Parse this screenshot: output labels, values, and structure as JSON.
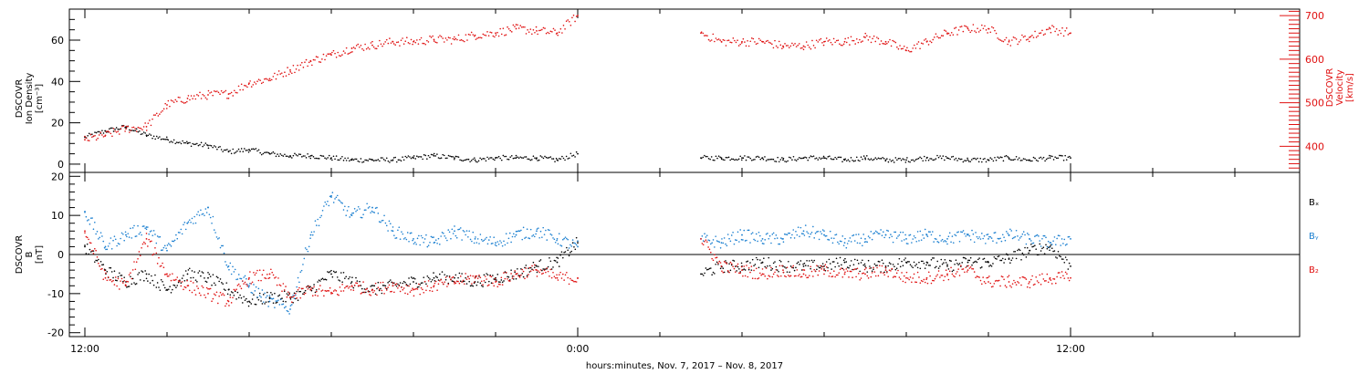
{
  "chart_data": [
    {
      "type": "scatter",
      "panel": "top",
      "ylabel_lines": [
        "DSCOVR",
        "Ion Density",
        "[cm⁻³]"
      ],
      "ylabel_right_lines": [
        "DSCOVR",
        "Velocity",
        "[km/s]"
      ],
      "ylim": [
        -4,
        75
      ],
      "ylim_right": [
        340,
        715
      ],
      "yticks": [
        0,
        20,
        40,
        60
      ],
      "yticks_right": [
        400,
        500,
        600,
        700
      ],
      "xticks": [
        "12:00",
        "0:00",
        "12:00"
      ],
      "series": [
        {
          "color": "#000000",
          "axis": "left",
          "x": [
            0,
            0.5,
            1,
            1.5,
            2,
            2.5,
            3,
            3.5,
            4,
            4.5,
            5,
            5.5,
            6,
            6.5,
            7,
            7.5,
            8,
            8.5,
            9,
            9.5,
            10,
            10.5,
            11,
            11.5,
            12,
            15,
            15.5,
            16,
            16.5,
            17,
            17.5,
            18,
            18.5,
            19,
            19.5,
            20,
            20.5,
            21,
            21.5,
            22,
            22.5,
            23,
            23.5,
            24
          ],
          "y": [
            13,
            16,
            18,
            14,
            12,
            10,
            9,
            6,
            7,
            5,
            4,
            4,
            3,
            2,
            2,
            2,
            3,
            4,
            3,
            2,
            3,
            3,
            3,
            2,
            5,
            3,
            3,
            3,
            3,
            2,
            3,
            3,
            2,
            3,
            2,
            2,
            3,
            3,
            2,
            2,
            3,
            2,
            3,
            3
          ]
        },
        {
          "color": "#e01010",
          "axis": "right",
          "x": [
            0,
            0.5,
            1,
            1.5,
            2,
            2.5,
            3,
            3.5,
            4,
            4.5,
            5,
            5.5,
            6,
            6.5,
            7,
            7.5,
            8,
            8.5,
            9,
            9.5,
            10,
            10.5,
            11,
            11.5,
            12,
            15,
            15.5,
            16,
            16.5,
            17,
            17.5,
            18,
            18.5,
            19,
            19.5,
            20,
            20.5,
            21,
            21.5,
            22,
            22.5,
            23,
            23.5,
            24
          ],
          "y": [
            415,
            425,
            440,
            445,
            495,
            510,
            518,
            520,
            545,
            555,
            575,
            595,
            610,
            625,
            632,
            640,
            640,
            645,
            645,
            655,
            660,
            670,
            665,
            660,
            700,
            660,
            640,
            640,
            640,
            630,
            630,
            640,
            640,
            650,
            640,
            620,
            640,
            660,
            670,
            670,
            640,
            650,
            670,
            660
          ]
        }
      ]
    },
    {
      "type": "scatter",
      "panel": "bottom",
      "ylabel_lines": [
        "DSCOVR",
        "B",
        "[nT]"
      ],
      "ylim": [
        -21,
        21
      ],
      "yticks": [
        -20,
        -10,
        0,
        10,
        20
      ],
      "xticks": [
        "12:00",
        "0:00",
        "12:00"
      ],
      "legend": [
        {
          "label": "Bₓ",
          "color": "#000000"
        },
        {
          "label": "Bᵧ",
          "color": "#1a7fd0"
        },
        {
          "label": "B₂",
          "color": "#e01010"
        }
      ],
      "series": [
        {
          "color": "#000000",
          "x": [
            0,
            0.5,
            1,
            1.5,
            2,
            2.5,
            3,
            3.5,
            4,
            4.5,
            5,
            5.5,
            6,
            6.5,
            7,
            7.5,
            8,
            8.5,
            9,
            9.5,
            10,
            10.5,
            11,
            11.5,
            12,
            15,
            15.5,
            16,
            16.5,
            17,
            17.5,
            18,
            18.5,
            19,
            19.5,
            20,
            20.5,
            21,
            21.5,
            22,
            22.5,
            23,
            23.5,
            24
          ],
          "y": [
            2,
            -4,
            -7,
            -5,
            -9,
            -5,
            -6,
            -9,
            -12,
            -11,
            -11,
            -9,
            -5,
            -7,
            -9,
            -8,
            -7,
            -6,
            -6,
            -7,
            -6,
            -5,
            -3,
            -2,
            3,
            -5,
            -3,
            -3,
            -2,
            -3,
            -3,
            -3,
            -2,
            -3,
            -3,
            -2,
            -2,
            -3,
            -2,
            -2,
            -1,
            1,
            2,
            -3
          ]
        },
        {
          "color": "#1a7fd0",
          "x": [
            0,
            0.5,
            1,
            1.5,
            2,
            2.5,
            3,
            3.5,
            4,
            4.5,
            5,
            5.5,
            6,
            6.5,
            7,
            7.5,
            8,
            8.5,
            9,
            9.5,
            10,
            10.5,
            11,
            11.5,
            12,
            15,
            15.5,
            16,
            16.5,
            17,
            17.5,
            18,
            18.5,
            19,
            19.5,
            20,
            20.5,
            21,
            21.5,
            22,
            22.5,
            23,
            23.5,
            24
          ],
          "y": [
            11,
            2,
            5,
            7,
            1,
            8,
            12,
            -3,
            -8,
            -12,
            -14,
            5,
            15,
            10,
            12,
            6,
            4,
            3,
            6,
            4,
            3,
            5,
            6,
            4,
            2,
            4,
            3,
            5,
            4,
            4,
            6,
            5,
            3,
            4,
            5,
            4,
            5,
            4,
            5,
            4,
            5,
            4,
            3,
            4
          ]
        },
        {
          "color": "#e01010",
          "x": [
            0,
            0.5,
            1,
            1.5,
            2,
            2.5,
            3,
            3.5,
            4,
            4.5,
            5,
            5.5,
            6,
            6.5,
            7,
            7.5,
            8,
            8.5,
            9,
            9.5,
            10,
            10.5,
            11,
            11.5,
            12,
            15,
            15.5,
            16,
            16.5,
            17,
            17.5,
            18,
            18.5,
            19,
            19.5,
            20,
            20.5,
            21,
            21.5,
            22,
            22.5,
            23,
            23.5,
            24
          ],
          "y": [
            6,
            -6,
            -8,
            4,
            -5,
            -8,
            -10,
            -12,
            -6,
            -5,
            -11,
            -9,
            -10,
            -8,
            -9,
            -8,
            -9,
            -8,
            -7,
            -6,
            -7,
            -5,
            -4,
            -6,
            -6,
            4,
            -3,
            -4,
            -5,
            -4,
            -5,
            -4,
            -5,
            -5,
            -4,
            -6,
            -6,
            -5,
            -4,
            -7,
            -7,
            -7,
            -6,
            -6
          ]
        }
      ]
    }
  ],
  "x_axis": {
    "label": "hours:minutes, Nov.  7, 2017 – Nov.  8, 2017",
    "tick_labels": [
      "12:00",
      "0:00",
      "12:00"
    ]
  }
}
